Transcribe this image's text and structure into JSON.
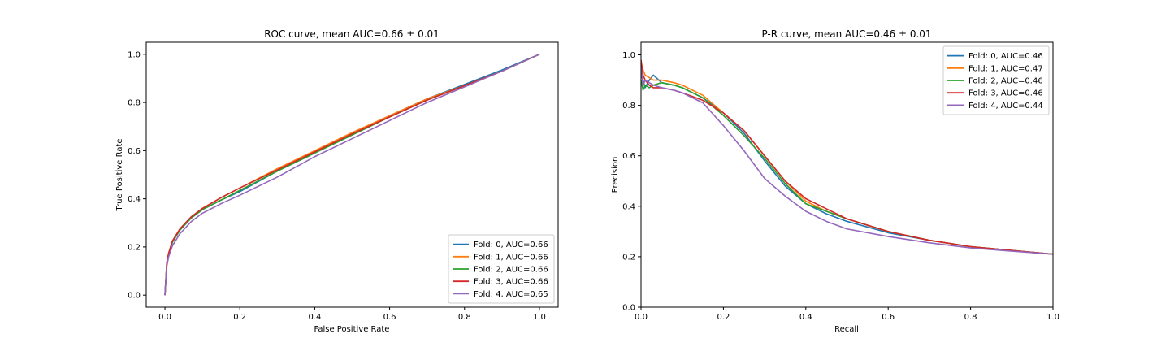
{
  "chart_data": [
    {
      "type": "line",
      "title": "ROC curve, mean AUC=0.66 ± 0.01",
      "xlabel": "False Positive Rate",
      "ylabel": "True Positive Rate",
      "xlim": [
        -0.05,
        1.05
      ],
      "ylim": [
        -0.05,
        1.05
      ],
      "x_ticks": [
        "0.0",
        "0.2",
        "0.4",
        "0.6",
        "0.8",
        "1.0"
      ],
      "y_ticks": [
        "0.0",
        "0.2",
        "0.4",
        "0.6",
        "0.8",
        "1.0"
      ],
      "grid": false,
      "legend_position": "lower-right",
      "series": [
        {
          "name": "Fold: 0, AUC=0.66",
          "color": "#1f77b4",
          "x": [
            0,
            0.005,
            0.01,
            0.02,
            0.04,
            0.07,
            0.1,
            0.15,
            0.2,
            0.3,
            0.4,
            0.5,
            0.6,
            0.7,
            0.8,
            0.9,
            1.0
          ],
          "y": [
            0,
            0.13,
            0.17,
            0.22,
            0.27,
            0.32,
            0.355,
            0.395,
            0.43,
            0.515,
            0.59,
            0.67,
            0.745,
            0.815,
            0.875,
            0.935,
            1.0
          ]
        },
        {
          "name": "Fold: 1, AUC=0.66",
          "color": "#ff7f0e",
          "x": [
            0,
            0.005,
            0.01,
            0.02,
            0.04,
            0.07,
            0.1,
            0.15,
            0.2,
            0.3,
            0.4,
            0.5,
            0.6,
            0.7,
            0.8,
            0.9,
            1.0
          ],
          "y": [
            0,
            0.135,
            0.175,
            0.225,
            0.275,
            0.325,
            0.36,
            0.405,
            0.445,
            0.525,
            0.6,
            0.675,
            0.745,
            0.815,
            0.87,
            0.93,
            1.0
          ]
        },
        {
          "name": "Fold: 2, AUC=0.66",
          "color": "#2ca02c",
          "x": [
            0,
            0.005,
            0.01,
            0.02,
            0.04,
            0.07,
            0.1,
            0.15,
            0.2,
            0.3,
            0.4,
            0.5,
            0.6,
            0.7,
            0.8,
            0.9,
            1.0
          ],
          "y": [
            0,
            0.13,
            0.17,
            0.22,
            0.27,
            0.32,
            0.355,
            0.395,
            0.435,
            0.515,
            0.59,
            0.665,
            0.74,
            0.81,
            0.87,
            0.93,
            1.0
          ]
        },
        {
          "name": "Fold: 3, AUC=0.66",
          "color": "#d62728",
          "x": [
            0,
            0.005,
            0.01,
            0.02,
            0.04,
            0.07,
            0.1,
            0.15,
            0.2,
            0.3,
            0.4,
            0.5,
            0.6,
            0.7,
            0.8,
            0.9,
            1.0
          ],
          "y": [
            0,
            0.135,
            0.175,
            0.225,
            0.275,
            0.325,
            0.36,
            0.405,
            0.445,
            0.52,
            0.595,
            0.67,
            0.74,
            0.81,
            0.87,
            0.93,
            1.0
          ]
        },
        {
          "name": "Fold: 4, AUC=0.65",
          "color": "#9467bd",
          "x": [
            0,
            0.005,
            0.01,
            0.02,
            0.04,
            0.07,
            0.1,
            0.15,
            0.2,
            0.3,
            0.4,
            0.5,
            0.6,
            0.7,
            0.8,
            0.9,
            1.0
          ],
          "y": [
            0,
            0.12,
            0.16,
            0.205,
            0.255,
            0.305,
            0.34,
            0.38,
            0.415,
            0.49,
            0.575,
            0.65,
            0.725,
            0.8,
            0.865,
            0.93,
            1.0
          ]
        }
      ]
    },
    {
      "type": "line",
      "title": "P-R curve, mean AUC=0.46 ± 0.01",
      "xlabel": "Recall",
      "ylabel": "Precision",
      "xlim": [
        0.0,
        1.0
      ],
      "ylim": [
        0.0,
        1.05
      ],
      "x_ticks": [
        "0.0",
        "0.2",
        "0.4",
        "0.6",
        "0.8",
        "1.0"
      ],
      "y_ticks": [
        "0.0",
        "0.2",
        "0.4",
        "0.6",
        "0.8",
        "1.0"
      ],
      "grid": false,
      "legend_position": "upper-right",
      "series": [
        {
          "name": "Fold: 0, AUC=0.46",
          "color": "#1f77b4",
          "x": [
            0,
            0.005,
            0.01,
            0.02,
            0.03,
            0.05,
            0.08,
            0.1,
            0.15,
            0.2,
            0.25,
            0.3,
            0.35,
            0.4,
            0.45,
            0.5,
            0.6,
            0.7,
            0.8,
            0.9,
            1.0
          ],
          "y": [
            0.92,
            0.9,
            0.87,
            0.9,
            0.92,
            0.89,
            0.88,
            0.87,
            0.83,
            0.77,
            0.69,
            0.58,
            0.48,
            0.41,
            0.37,
            0.34,
            0.295,
            0.265,
            0.24,
            0.225,
            0.21
          ]
        },
        {
          "name": "Fold: 1, AUC=0.47",
          "color": "#ff7f0e",
          "x": [
            0,
            0.005,
            0.01,
            0.02,
            0.03,
            0.05,
            0.08,
            0.1,
            0.15,
            0.2,
            0.25,
            0.3,
            0.35,
            0.4,
            0.45,
            0.5,
            0.6,
            0.7,
            0.8,
            0.9,
            1.0
          ],
          "y": [
            0.97,
            0.94,
            0.92,
            0.91,
            0.9,
            0.9,
            0.89,
            0.88,
            0.84,
            0.77,
            0.7,
            0.6,
            0.5,
            0.42,
            0.38,
            0.35,
            0.3,
            0.265,
            0.24,
            0.225,
            0.21
          ]
        },
        {
          "name": "Fold: 2, AUC=0.46",
          "color": "#2ca02c",
          "x": [
            0,
            0.005,
            0.01,
            0.02,
            0.03,
            0.05,
            0.08,
            0.1,
            0.15,
            0.2,
            0.25,
            0.3,
            0.35,
            0.4,
            0.45,
            0.5,
            0.6,
            0.7,
            0.8,
            0.9,
            1.0
          ],
          "y": [
            0.9,
            0.86,
            0.88,
            0.87,
            0.88,
            0.89,
            0.88,
            0.87,
            0.83,
            0.76,
            0.68,
            0.59,
            0.49,
            0.41,
            0.38,
            0.35,
            0.3,
            0.265,
            0.24,
            0.225,
            0.21
          ]
        },
        {
          "name": "Fold: 3, AUC=0.46",
          "color": "#d62728",
          "x": [
            0,
            0.005,
            0.01,
            0.02,
            0.03,
            0.05,
            0.08,
            0.1,
            0.15,
            0.2,
            0.25,
            0.3,
            0.35,
            0.4,
            0.45,
            0.5,
            0.6,
            0.7,
            0.8,
            0.9,
            1.0
          ],
          "y": [
            0.98,
            0.92,
            0.9,
            0.88,
            0.87,
            0.87,
            0.86,
            0.85,
            0.82,
            0.77,
            0.7,
            0.6,
            0.5,
            0.43,
            0.39,
            0.35,
            0.3,
            0.265,
            0.24,
            0.225,
            0.21
          ]
        },
        {
          "name": "Fold: 4, AUC=0.44",
          "color": "#9467bd",
          "x": [
            0,
            0.005,
            0.01,
            0.02,
            0.03,
            0.05,
            0.08,
            0.1,
            0.15,
            0.2,
            0.25,
            0.3,
            0.35,
            0.4,
            0.45,
            0.5,
            0.6,
            0.7,
            0.8,
            0.9,
            1.0
          ],
          "y": [
            0.95,
            0.88,
            0.9,
            0.89,
            0.88,
            0.87,
            0.86,
            0.85,
            0.81,
            0.72,
            0.62,
            0.51,
            0.44,
            0.38,
            0.34,
            0.31,
            0.28,
            0.255,
            0.235,
            0.222,
            0.21
          ]
        }
      ]
    }
  ]
}
